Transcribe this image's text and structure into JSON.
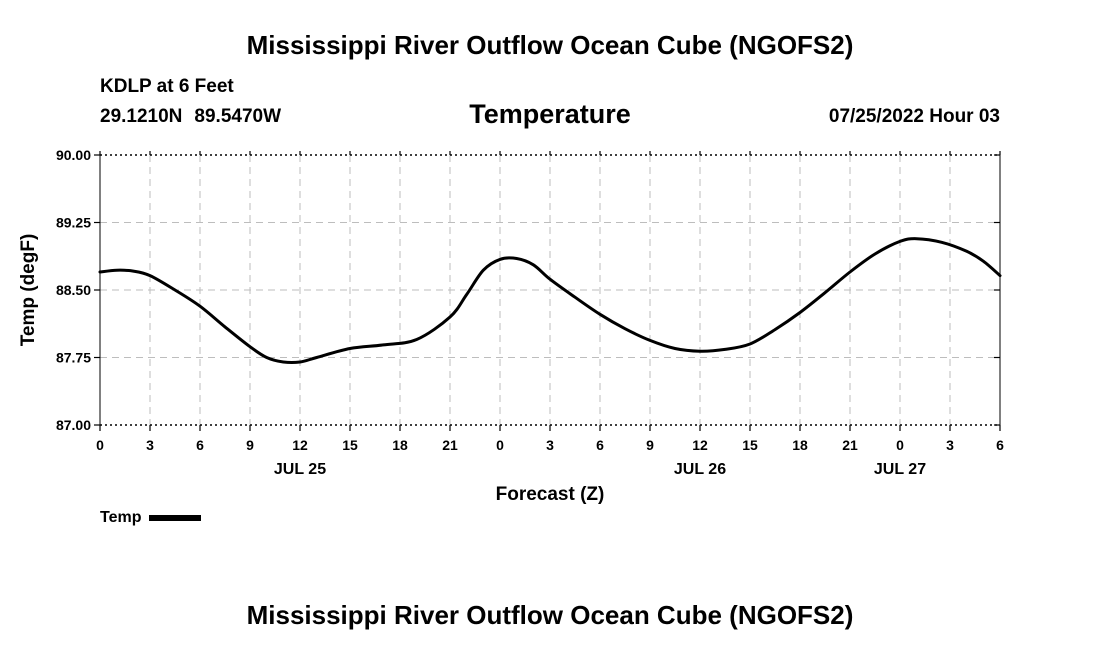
{
  "header": {
    "title": "Mississippi River Outflow Ocean Cube (NGOFS2)",
    "station": "KDLP at 6 Feet",
    "lat": "29.1210N",
    "lon": "89.5470W",
    "date": "07/25/2022 Hour 03"
  },
  "footer": {
    "title": "Mississippi River Outflow Ocean Cube (NGOFS2)"
  },
  "legend": {
    "label": "Temp"
  },
  "chart_data": {
    "type": "line",
    "title": "Temperature",
    "xlabel": "Forecast (Z)",
    "ylabel": "Temp (degF)",
    "xlim": [
      0,
      54
    ],
    "ylim": [
      87.0,
      90.0
    ],
    "yticks": [
      "90.00",
      "89.25",
      "88.50",
      "87.75",
      "87.00"
    ],
    "ytick_values": [
      90.0,
      89.25,
      88.5,
      87.75,
      87.0
    ],
    "xtick_values": [
      0,
      3,
      6,
      9,
      12,
      15,
      18,
      21,
      24,
      27,
      30,
      33,
      36,
      39,
      42,
      45,
      48,
      51,
      54
    ],
    "xticks": [
      "0",
      "3",
      "6",
      "9",
      "12",
      "15",
      "18",
      "21",
      "0",
      "3",
      "6",
      "9",
      "12",
      "15",
      "18",
      "21",
      "0",
      "3",
      "6"
    ],
    "day_labels": [
      {
        "hour": 12,
        "label": "JUL 25"
      },
      {
        "hour": 36,
        "label": "JUL 26"
      },
      {
        "hour": 48,
        "label": "JUL 27"
      }
    ],
    "grid": true,
    "series": [
      {
        "name": "Temp",
        "color": "#000000",
        "x": [
          0,
          1,
          2,
          3,
          4.5,
          6,
          7.5,
          9,
          10,
          11,
          12,
          13,
          15,
          17,
          19,
          21,
          22,
          23,
          24,
          25,
          26,
          27,
          28.5,
          30,
          31.5,
          33,
          34.5,
          36,
          37.5,
          39,
          40.5,
          42,
          43.5,
          45,
          46.5,
          48,
          49,
          50.5,
          52,
          53,
          54
        ],
        "values": [
          88.7,
          88.72,
          88.71,
          88.66,
          88.5,
          88.32,
          88.09,
          87.87,
          87.75,
          87.7,
          87.7,
          87.75,
          87.85,
          87.89,
          87.95,
          88.2,
          88.45,
          88.72,
          88.84,
          88.85,
          88.78,
          88.62,
          88.42,
          88.23,
          88.07,
          87.94,
          87.85,
          87.82,
          87.84,
          87.9,
          88.06,
          88.25,
          88.47,
          88.7,
          88.9,
          89.04,
          89.07,
          89.03,
          88.93,
          88.82,
          88.66
        ]
      }
    ]
  }
}
